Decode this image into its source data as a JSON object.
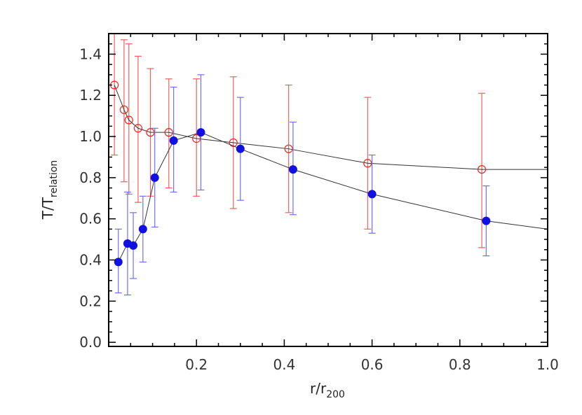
{
  "chart_data": {
    "type": "scatter",
    "title": "",
    "xlabel": "r/r200",
    "xlabel_main": "r/r",
    "xlabel_sub": "200",
    "ylabel": "T/Trelation",
    "ylabel_main": "T/T",
    "ylabel_sub": "relation",
    "xlim": [
      0.0,
      1.0
    ],
    "ylim": [
      -0.02,
      1.5
    ],
    "xticks": [
      "0.2",
      "0.4",
      "0.6",
      "0.8",
      "1.0"
    ],
    "yticks": [
      "0.0",
      "0.2",
      "0.4",
      "0.6",
      "0.8",
      "1.0",
      "1.2",
      "1.4"
    ],
    "grid": false,
    "series": [
      {
        "name": "open red circles",
        "marker": "open-circle",
        "color": "#e8281e",
        "errcolor": "#f06060",
        "line_end": [
          1.0,
          0.84
        ],
        "points": [
          {
            "x": 0.013,
            "y": 1.25,
            "lo": 0.91,
            "hi": 1.75
          },
          {
            "x": 0.035,
            "y": 1.13,
            "lo": 0.78,
            "hi": 1.47
          },
          {
            "x": 0.046,
            "y": 1.08,
            "lo": 0.72,
            "hi": 1.45
          },
          {
            "x": 0.067,
            "y": 1.04,
            "lo": 0.68,
            "hi": 1.39
          },
          {
            "x": 0.095,
            "y": 1.02,
            "lo": 0.71,
            "hi": 1.33
          },
          {
            "x": 0.137,
            "y": 1.02,
            "lo": 0.75,
            "hi": 1.28
          },
          {
            "x": 0.2,
            "y": 0.99,
            "lo": 0.71,
            "hi": 1.28
          },
          {
            "x": 0.284,
            "y": 0.97,
            "lo": 0.65,
            "hi": 1.29
          },
          {
            "x": 0.41,
            "y": 0.94,
            "lo": 0.63,
            "hi": 1.25
          },
          {
            "x": 0.59,
            "y": 0.87,
            "lo": 0.55,
            "hi": 1.19
          },
          {
            "x": 0.85,
            "y": 0.84,
            "lo": 0.46,
            "hi": 1.21
          }
        ]
      },
      {
        "name": "filled blue circles",
        "marker": "filled-circle",
        "color": "#1010e0",
        "errcolor": "#7070f0",
        "line_end": [
          1.0,
          0.55
        ],
        "points": [
          {
            "x": 0.022,
            "y": 0.39,
            "lo": 0.24,
            "hi": 0.55
          },
          {
            "x": 0.043,
            "y": 0.48,
            "lo": 0.23,
            "hi": 0.73
          },
          {
            "x": 0.056,
            "y": 0.47,
            "lo": 0.31,
            "hi": 0.63
          },
          {
            "x": 0.078,
            "y": 0.55,
            "lo": 0.39,
            "hi": 0.71
          },
          {
            "x": 0.105,
            "y": 0.8,
            "lo": 0.56,
            "hi": 1.04
          },
          {
            "x": 0.148,
            "y": 0.98,
            "lo": 0.73,
            "hi": 1.24
          },
          {
            "x": 0.21,
            "y": 1.02,
            "lo": 0.74,
            "hi": 1.3
          },
          {
            "x": 0.3,
            "y": 0.94,
            "lo": 0.69,
            "hi": 1.19
          },
          {
            "x": 0.42,
            "y": 0.84,
            "lo": 0.62,
            "hi": 1.07
          },
          {
            "x": 0.6,
            "y": 0.72,
            "lo": 0.53,
            "hi": 0.91
          },
          {
            "x": 0.86,
            "y": 0.59,
            "lo": 0.42,
            "hi": 0.76
          }
        ]
      }
    ]
  }
}
